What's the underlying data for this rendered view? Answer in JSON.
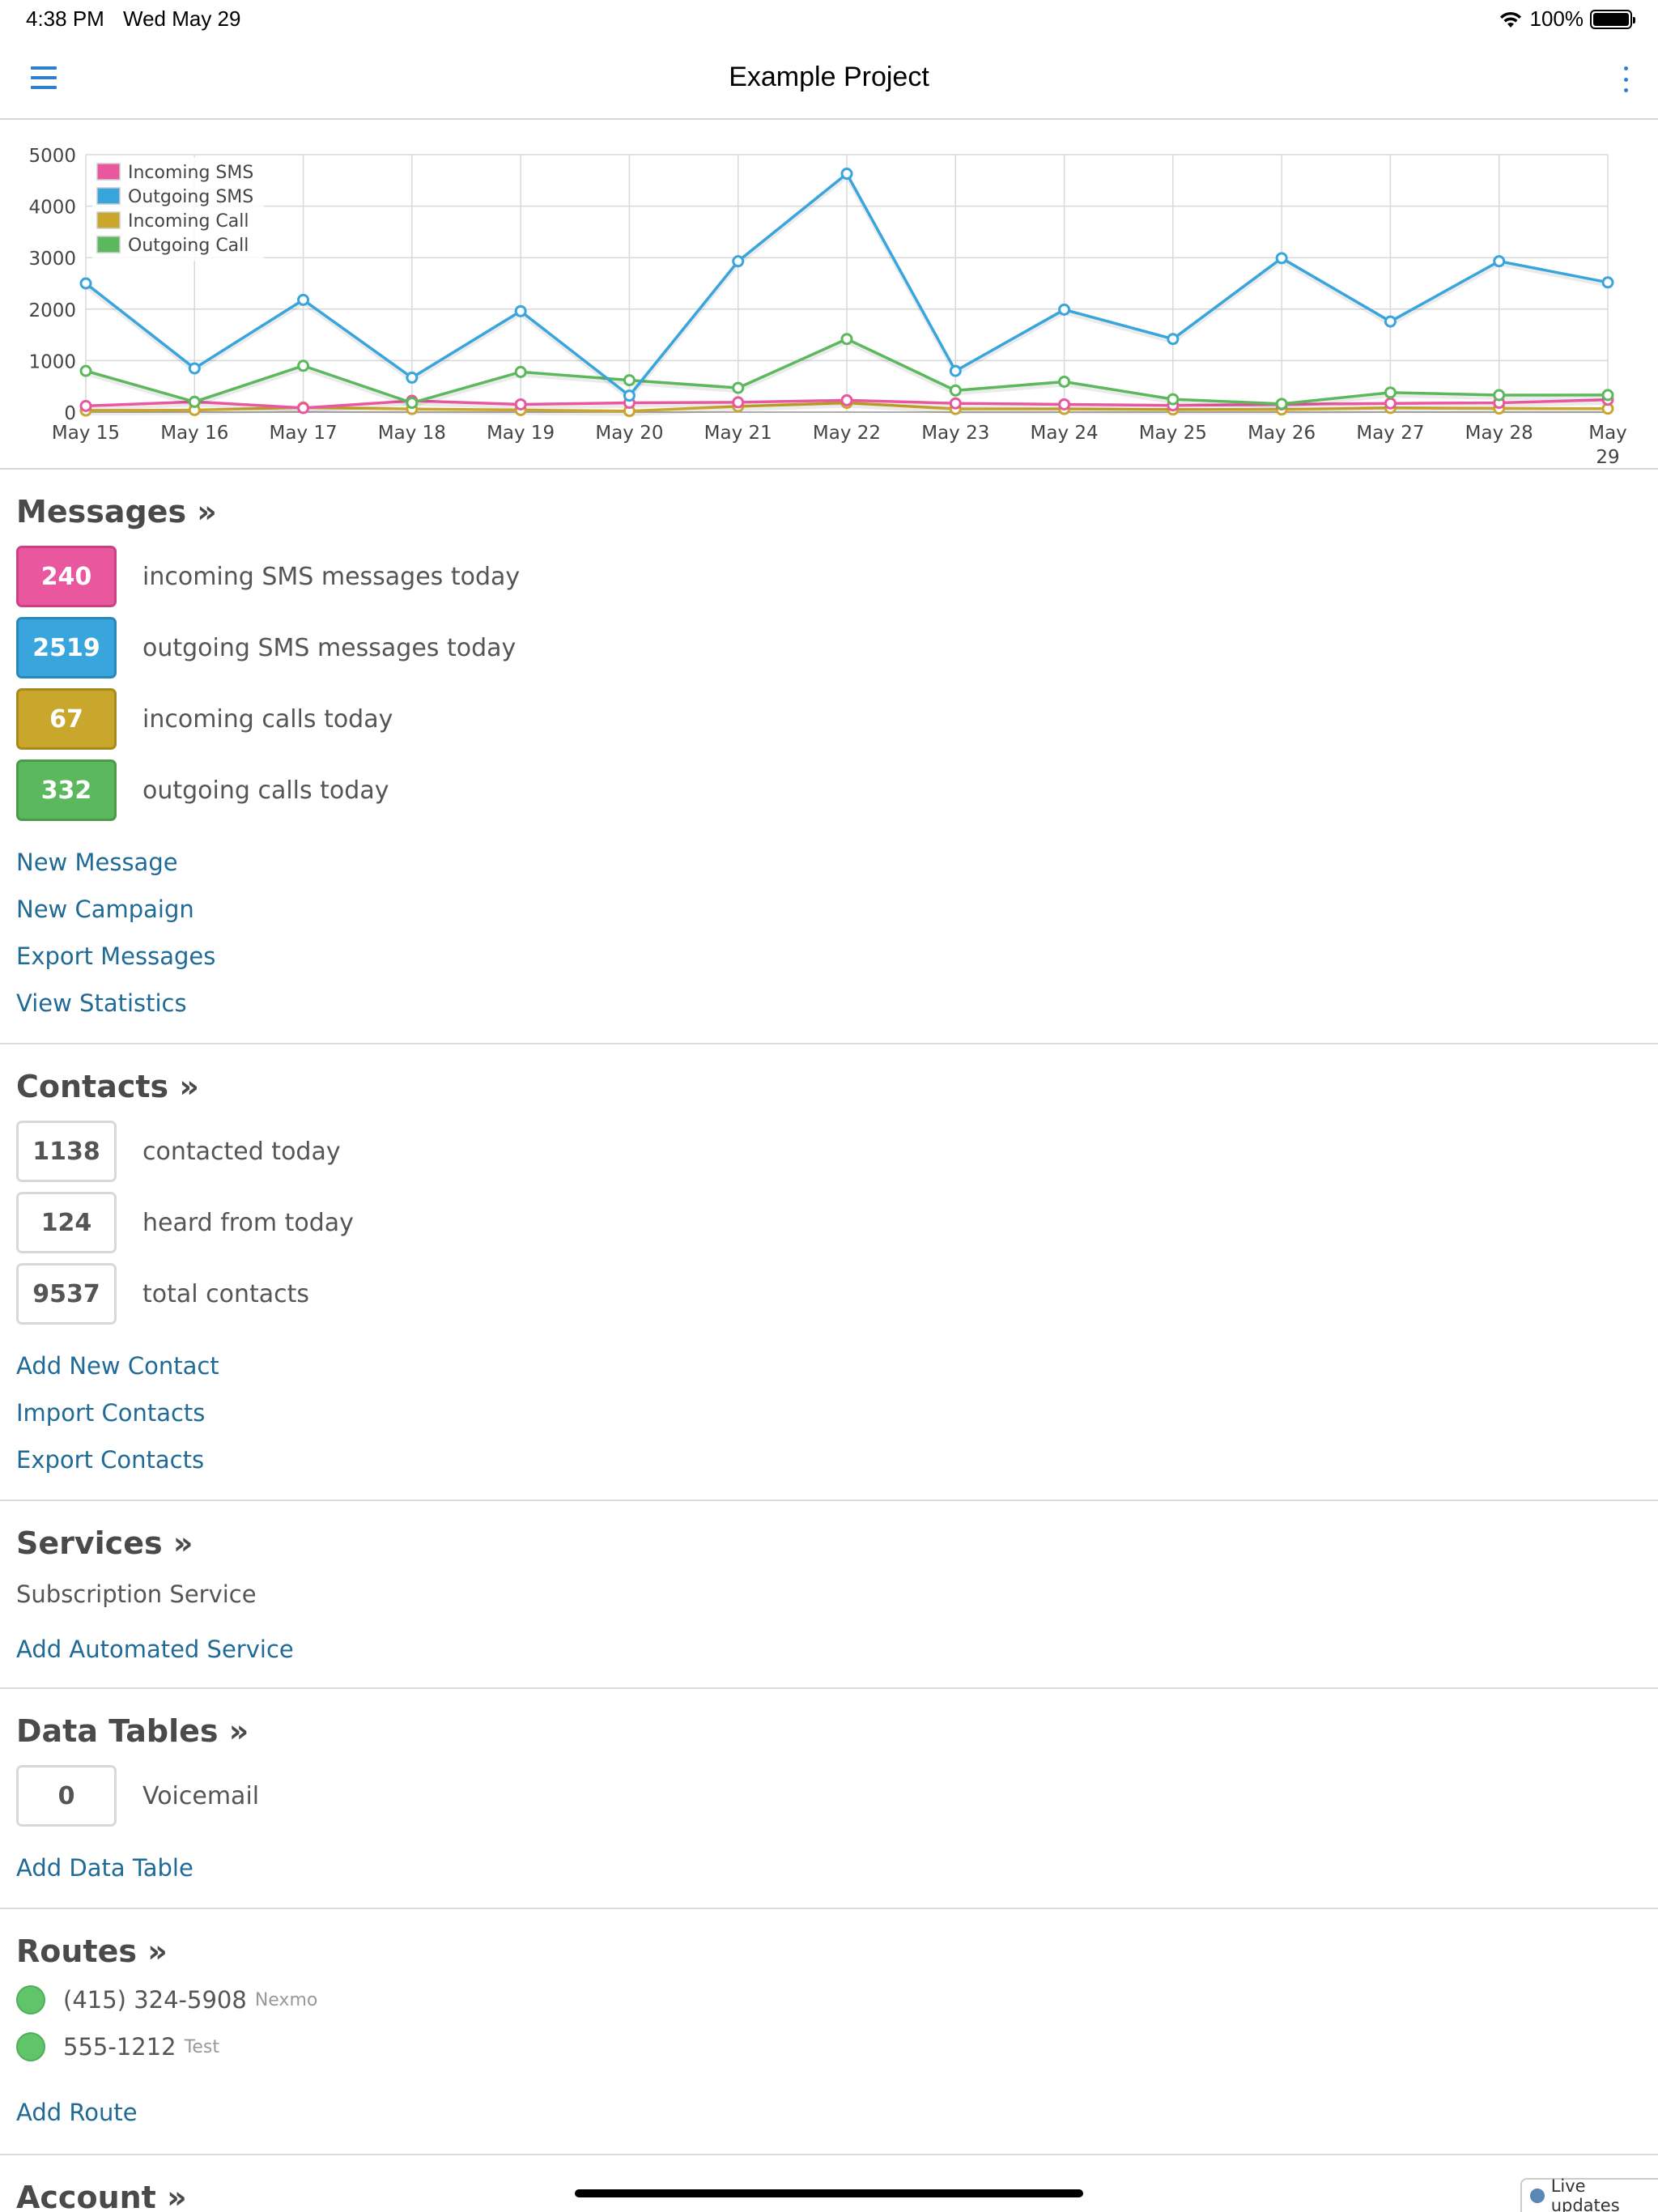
{
  "status_bar": {
    "time": "4:38 PM",
    "date": "Wed May 29",
    "battery": "100%"
  },
  "nav": {
    "title": "Example Project"
  },
  "chart_data": {
    "type": "line",
    "categories": [
      "May 15",
      "May 16",
      "May 17",
      "May 18",
      "May 19",
      "May 20",
      "May 21",
      "May 22",
      "May 23",
      "May 24",
      "May 25",
      "May 26",
      "May 27",
      "May 28",
      "May 29"
    ],
    "series": [
      {
        "name": "Incoming SMS",
        "color": "#e9579e",
        "values": [
          120,
          200,
          80,
          220,
          150,
          180,
          190,
          230,
          170,
          150,
          130,
          150,
          170,
          180,
          240
        ]
      },
      {
        "name": "Outgoing SMS",
        "color": "#38a5dc",
        "values": [
          2500,
          850,
          2180,
          670,
          1960,
          320,
          2930,
          4630,
          800,
          1990,
          1420,
          2990,
          1760,
          2930,
          2519
        ]
      },
      {
        "name": "Incoming Call",
        "color": "#c8a72c",
        "values": [
          30,
          40,
          90,
          60,
          40,
          20,
          110,
          180,
          60,
          60,
          50,
          50,
          80,
          70,
          67
        ]
      },
      {
        "name": "Outgoing Call",
        "color": "#5cb85c",
        "values": [
          800,
          200,
          900,
          180,
          780,
          620,
          470,
          1420,
          420,
          590,
          250,
          160,
          380,
          330,
          332
        ]
      }
    ],
    "ylim": [
      0,
      5000
    ],
    "yticks": [
      0,
      1000,
      2000,
      3000,
      4000,
      5000
    ],
    "grid": true,
    "legend": "top-left"
  },
  "messages": {
    "title": "Messages »",
    "stats": [
      {
        "value": "240",
        "label": "incoming SMS messages today",
        "color": "#e9579e",
        "border": "#c94284"
      },
      {
        "value": "2519",
        "label": "outgoing SMS messages today",
        "color": "#38a5dc",
        "border": "#2a88b8"
      },
      {
        "value": "67",
        "label": "incoming calls today",
        "color": "#c8a72c",
        "border": "#a68a20"
      },
      {
        "value": "332",
        "label": "outgoing calls today",
        "color": "#5cb85c",
        "border": "#4a9a4a"
      }
    ],
    "links": [
      "New Message",
      "New Campaign",
      "Export Messages",
      "View Statistics"
    ]
  },
  "contacts": {
    "title": "Contacts »",
    "stats": [
      {
        "value": "1138",
        "label": "contacted today"
      },
      {
        "value": "124",
        "label": "heard from today"
      },
      {
        "value": "9537",
        "label": "total contacts"
      }
    ],
    "links": [
      "Add New Contact",
      "Import Contacts",
      "Export Contacts"
    ]
  },
  "services": {
    "title": "Services »",
    "items": [
      "Subscription Service"
    ],
    "links": [
      "Add Automated Service"
    ]
  },
  "data_tables": {
    "title": "Data Tables »",
    "stats": [
      {
        "value": "0",
        "label": "Voicemail"
      }
    ],
    "links": [
      "Add Data Table"
    ]
  },
  "routes": {
    "title": "Routes »",
    "items": [
      {
        "number": "(415) 324-5908",
        "provider": "Nexmo"
      },
      {
        "number": "555-1212",
        "provider": "Test"
      }
    ],
    "links": [
      "Add Route"
    ]
  },
  "account": {
    "title": "Account »"
  },
  "live_updates": {
    "label": "Live updates"
  }
}
